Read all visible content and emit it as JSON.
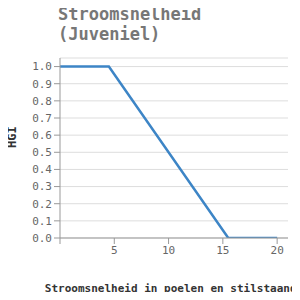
{
  "chart_data": {
    "type": "line",
    "title": "Stroomsnelheid (Juveniel)",
    "x_label": "Stroomsnelheid in poelen en stilstaandw",
    "y_label": "HGI",
    "x": [
      0,
      4.5,
      15.5,
      20
    ],
    "values": [
      1,
      1,
      0,
      0
    ],
    "color": "#3d85c6",
    "xlim": [
      0,
      21
    ],
    "xticks": [
      0,
      5,
      10,
      15,
      20
    ],
    "ylim": [
      0,
      1.05
    ],
    "yticks": [
      {
        "value": 0,
        "label": "0.0"
      },
      {
        "value": 0.1,
        "label": "0.1"
      },
      {
        "value": 0.2,
        "label": "0.2"
      },
      {
        "value": 0.3,
        "label": "0.3"
      },
      {
        "value": 0.4,
        "label": "0.4"
      },
      {
        "value": 0.5,
        "label": "0.5"
      },
      {
        "value": 0.6,
        "label": "0.6"
      },
      {
        "value": 0.7,
        "label": "0.7"
      },
      {
        "value": 0.8,
        "label": "0.8"
      },
      {
        "value": 0.9,
        "label": "0.9"
      },
      {
        "value": 1,
        "label": "1.0"
      }
    ],
    "grid": true
  }
}
